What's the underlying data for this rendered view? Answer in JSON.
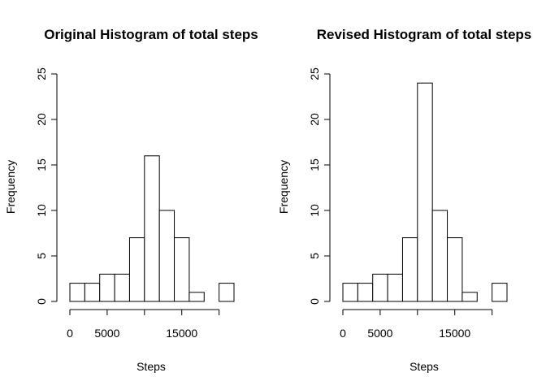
{
  "chart_data": [
    {
      "type": "bar",
      "title": "Original Histogram of total steps",
      "xlabel": "Steps",
      "ylabel": "Frequency",
      "bin_edges": [
        0,
        2000,
        4000,
        6000,
        8000,
        10000,
        12000,
        14000,
        16000,
        18000,
        20000,
        22000
      ],
      "values": [
        2,
        2,
        3,
        3,
        7,
        16,
        10,
        7,
        1,
        0,
        2
      ],
      "xticks": [
        0,
        5000,
        10000,
        15000,
        20000
      ],
      "xtick_labels": [
        "0",
        "5000",
        "",
        "15000",
        ""
      ],
      "yticks": [
        0,
        5,
        10,
        15,
        20,
        25
      ],
      "ytick_labels": [
        "0",
        "5",
        "10",
        "15",
        "20",
        "25"
      ],
      "xlim": [
        0,
        22000
      ],
      "ylim": [
        0,
        25
      ],
      "grid": false,
      "bar_fill": "#ffffff",
      "bar_stroke": "#000000"
    },
    {
      "type": "bar",
      "title": "Revised Histogram of total steps",
      "xlabel": "Steps",
      "ylabel": "Frequency",
      "bin_edges": [
        0,
        2000,
        4000,
        6000,
        8000,
        10000,
        12000,
        14000,
        16000,
        18000,
        20000,
        22000
      ],
      "values": [
        2,
        2,
        3,
        3,
        7,
        24,
        10,
        7,
        1,
        0,
        2
      ],
      "xticks": [
        0,
        5000,
        10000,
        15000,
        20000
      ],
      "xtick_labels": [
        "0",
        "5000",
        "",
        "15000",
        ""
      ],
      "yticks": [
        0,
        5,
        10,
        15,
        20,
        25
      ],
      "ytick_labels": [
        "0",
        "5",
        "10",
        "15",
        "20",
        "25"
      ],
      "xlim": [
        0,
        22000
      ],
      "ylim": [
        0,
        25
      ],
      "grid": false,
      "bar_fill": "#ffffff",
      "bar_stroke": "#000000"
    }
  ]
}
